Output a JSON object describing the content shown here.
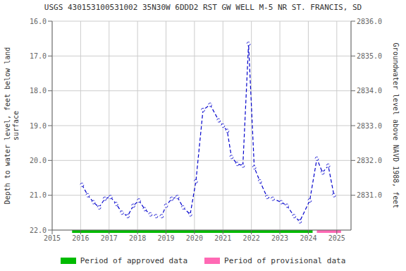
{
  "chart_data": {
    "type": "line",
    "title": "USGS 430153100531002 35N30W 6DDD2 RST GW WELL M-5 NR ST. FRANCIS, SD",
    "ylabel": "Depth to water level, feet below land\nsurface",
    "y2label": "Groundwater level above NAVD 1988, feet",
    "x": [
      2016.05,
      2016.25,
      2016.45,
      2016.65,
      2016.85,
      2017.05,
      2017.25,
      2017.45,
      2017.65,
      2017.85,
      2018.05,
      2018.25,
      2018.45,
      2018.65,
      2018.85,
      2019.0,
      2019.2,
      2019.4,
      2019.6,
      2019.85,
      2020.05,
      2020.3,
      2020.55,
      2020.85,
      2021.0,
      2021.15,
      2021.3,
      2021.5,
      2021.7,
      2021.9,
      2022.1,
      2022.3,
      2022.55,
      2022.75,
      2023.05,
      2023.25,
      2023.5,
      2023.7,
      2024.05,
      2024.3,
      2024.5,
      2024.7,
      2024.9
    ],
    "values": [
      20.7,
      21.0,
      21.2,
      21.35,
      21.1,
      21.05,
      21.25,
      21.5,
      21.6,
      21.3,
      21.15,
      21.4,
      21.55,
      21.6,
      21.6,
      21.3,
      21.1,
      21.05,
      21.35,
      21.55,
      20.6,
      18.55,
      18.4,
      18.85,
      19.0,
      19.15,
      19.9,
      20.1,
      20.15,
      16.65,
      20.2,
      20.6,
      21.05,
      21.1,
      21.2,
      21.3,
      21.6,
      21.75,
      21.15,
      19.95,
      20.35,
      20.15,
      21.0
    ],
    "color": "#0000cc",
    "marker": "circle",
    "line_style": "dashed",
    "xlim": [
      2015.0,
      2025.5
    ],
    "xticks": [
      2015,
      2016,
      2017,
      2018,
      2019,
      2020,
      2021,
      2022,
      2023,
      2024,
      2025
    ],
    "ylim": [
      22.0,
      16.0
    ],
    "yticks": [
      {
        "value": 16.0,
        "label": "16.0"
      },
      {
        "value": 17.0,
        "label": "17.0"
      },
      {
        "value": 18.0,
        "label": "18.0"
      },
      {
        "value": 19.0,
        "label": "19.0"
      },
      {
        "value": 20.0,
        "label": "20.0"
      },
      {
        "value": 21.0,
        "label": "21.0"
      },
      {
        "value": 22.0,
        "label": "22.0"
      }
    ],
    "y2lim": [
      2830.0,
      2836.0
    ],
    "y2ticks": [
      {
        "value": 2831.0,
        "label": "2831.0"
      },
      {
        "value": 2832.0,
        "label": "2832.0"
      },
      {
        "value": 2833.0,
        "label": "2833.0"
      },
      {
        "value": 2834.0,
        "label": "2834.0"
      },
      {
        "value": 2835.0,
        "label": "2835.0"
      },
      {
        "value": 2836.0,
        "label": "2836.0"
      }
    ],
    "periods": [
      {
        "name": "Period of approved data",
        "start": 2015.7,
        "end": 2024.15,
        "color": "#00bb00"
      },
      {
        "name": "Period of provisional data",
        "start": 2024.3,
        "end": 2025.15,
        "color": "#ff69b4"
      }
    ],
    "grid": true,
    "legend": "bottom"
  }
}
